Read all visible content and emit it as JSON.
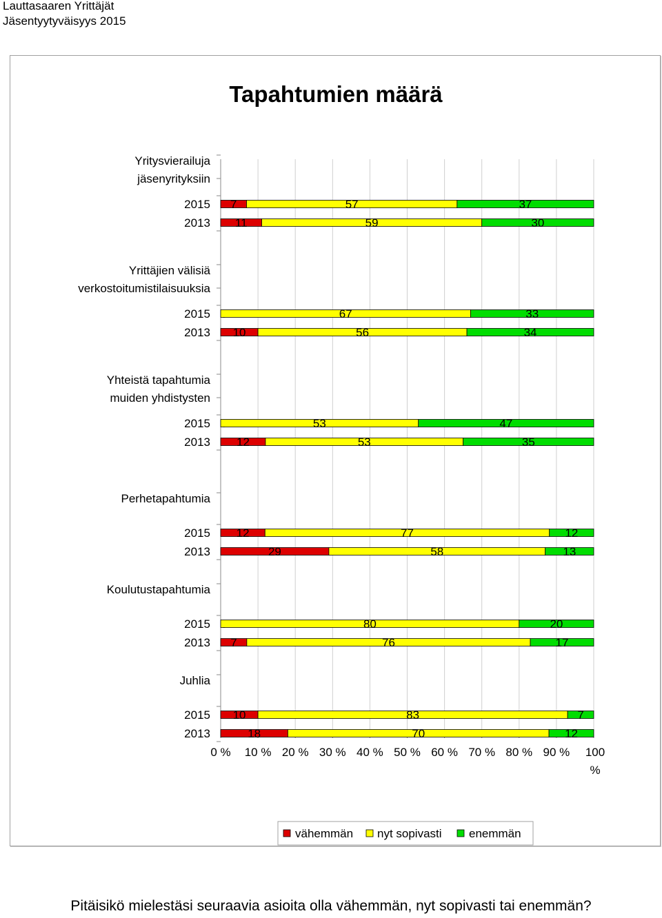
{
  "header": {
    "org": "Lauttasaaren Yrittäjät",
    "survey": "Jäsentyytyväisyys 2015"
  },
  "footer_question": "Pitäisikö mielestäsi seuraavia asioita olla vähemmän, nyt sopivasti tai enemmän?",
  "colors": {
    "vahemman": "#dd0000",
    "nyt_sopivasti": "#ffff00",
    "enemman": "#00dd00"
  },
  "chart_data": {
    "type": "bar",
    "orientation": "horizontal",
    "stacked": "percent",
    "title": "Tapahtumien määrä",
    "xlim": [
      0,
      100
    ],
    "x_ticks": [
      "0 %",
      "10 %",
      "20 %",
      "30 %",
      "40 %",
      "50 %",
      "60 %",
      "70 %",
      "80 %",
      "90 %",
      "100 %"
    ],
    "grid": true,
    "legend_position": "bottom",
    "series": [
      {
        "name": "vähemmän",
        "color": "#dd0000"
      },
      {
        "name": "nyt sopivasti",
        "color": "#ffff00"
      },
      {
        "name": "enemmän",
        "color": "#00dd00"
      }
    ],
    "groups": [
      {
        "label": "Yritysvierailuja jäsenyrityksiin",
        "rows": [
          {
            "year": "2015",
            "values": [
              7,
              57,
              37
            ]
          },
          {
            "year": "2013",
            "values": [
              11,
              59,
              30
            ]
          }
        ]
      },
      {
        "label": "Yrittäjien välisiä verkostoitumistilaisuuksia",
        "rows": [
          {
            "year": "2015",
            "values": [
              0,
              67,
              33
            ]
          },
          {
            "year": "2013",
            "values": [
              10,
              56,
              34
            ]
          }
        ]
      },
      {
        "label": "Yhteistä tapahtumia muiden yhdistysten",
        "rows": [
          {
            "year": "2015",
            "values": [
              0,
              53,
              47
            ]
          },
          {
            "year": "2013",
            "values": [
              12,
              53,
              35
            ]
          }
        ]
      },
      {
        "label": "Perhetapahtumia",
        "rows": [
          {
            "year": "2015",
            "values": [
              12,
              77,
              12
            ]
          },
          {
            "year": "2013",
            "values": [
              29,
              58,
              13
            ]
          }
        ]
      },
      {
        "label": "Koulutustapahtumia",
        "rows": [
          {
            "year": "2015",
            "values": [
              0,
              80,
              20
            ]
          },
          {
            "year": "2013",
            "values": [
              7,
              76,
              17
            ]
          }
        ]
      },
      {
        "label": "Juhlia",
        "rows": [
          {
            "year": "2015",
            "values": [
              10,
              83,
              7
            ]
          },
          {
            "year": "2013",
            "values": [
              18,
              70,
              12
            ]
          }
        ]
      }
    ]
  }
}
